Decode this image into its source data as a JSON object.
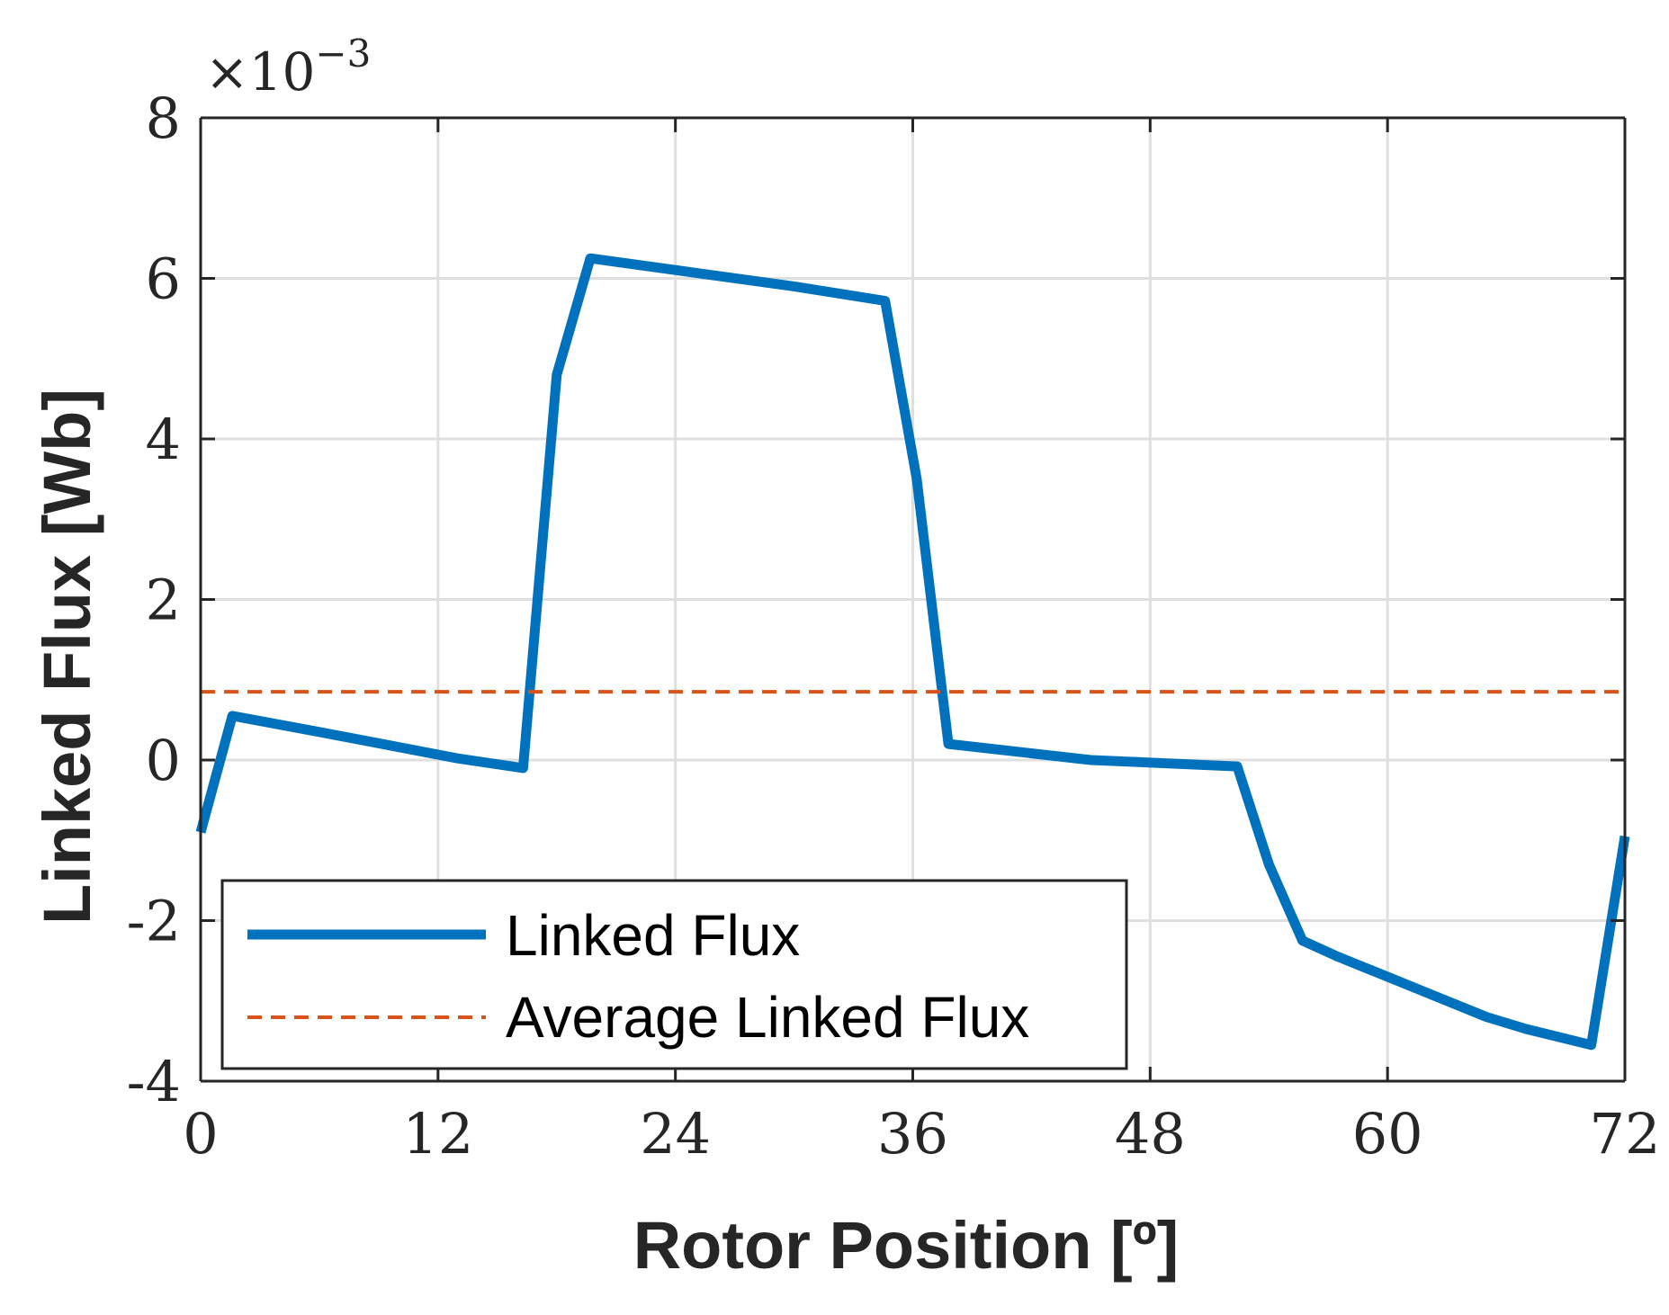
{
  "chart_data": {
    "type": "line",
    "xlabel": "Rotor Position [º]",
    "ylabel": "Linked Flux [Wb]",
    "x_ticks": [
      "0",
      "12",
      "24",
      "36",
      "48",
      "60",
      "72"
    ],
    "y_ticks": [
      "-4",
      "-2",
      "0",
      "2",
      "4",
      "6",
      "8"
    ],
    "y_multiplier": "×10",
    "y_multiplier_exp": "−3",
    "xlim": [
      0,
      72
    ],
    "ylim": [
      -4,
      8
    ],
    "grid": true,
    "legend_position": "bottom-left",
    "series": [
      {
        "name": "Linked Flux",
        "color": "#0072BD",
        "style": "solid",
        "x": [
          0,
          1.6,
          6,
          13,
          16.3,
          18,
          19.7,
          25,
          30,
          34.6,
          36.2,
          37.8,
          45,
          52.4,
          54,
          55.7,
          57.5,
          62,
          65,
          67,
          70.3,
          72
        ],
        "y": [
          -0.9,
          0.55,
          0.35,
          0.02,
          -0.1,
          4.8,
          6.25,
          6.07,
          5.9,
          5.72,
          3.5,
          0.2,
          0.0,
          -0.08,
          -1.3,
          -2.25,
          -2.45,
          -2.9,
          -3.2,
          -3.35,
          -3.55,
          -0.95
        ]
      },
      {
        "name": "Average Linked Flux",
        "color": "#D95319",
        "style": "dashed",
        "x": [
          0,
          72
        ],
        "y": [
          0.85,
          0.85
        ]
      }
    ]
  }
}
